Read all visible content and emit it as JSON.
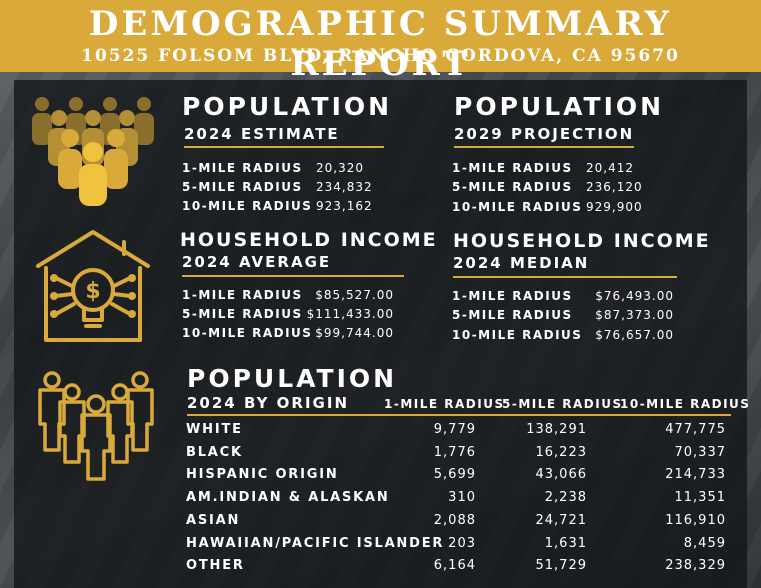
{
  "header": {
    "title": "DEMOGRAPHIC SUMMARY REPORT",
    "address": "10525 FOLSOM BLVD, RANCHO CORDOVA, CA 95670"
  },
  "accent_color": "#d9aa3a",
  "icons": [
    "people-group-icon",
    "house-lightbulb-icon",
    "people-outline-icon"
  ],
  "population_2024": {
    "title": "POPULATION",
    "subtitle": "2024 ESTIMATE",
    "rows": [
      {
        "label": "1-MILE RADIUS",
        "value": "20,320"
      },
      {
        "label": "5-MILE RADIUS",
        "value": "234,832"
      },
      {
        "label": "10-MILE RADIUS",
        "value": "923,162"
      }
    ]
  },
  "population_2029": {
    "title": "POPULATION",
    "subtitle": "2029 PROJECTION",
    "rows": [
      {
        "label": "1-MILE RADIUS",
        "value": "20,412"
      },
      {
        "label": "5-MILE RADIUS",
        "value": "236,120"
      },
      {
        "label": "10-MILE RADIUS",
        "value": "929,900"
      }
    ]
  },
  "income_average": {
    "title": "HOUSEHOLD INCOME",
    "subtitle": "2024 AVERAGE",
    "rows": [
      {
        "label": "1-MILE RADIUS",
        "value": "$85,527.00"
      },
      {
        "label": "5-MILE RADIUS",
        "value": "$111,433.00"
      },
      {
        "label": "10-MILE RADIUS",
        "value": "$99,744.00"
      }
    ]
  },
  "income_median": {
    "title": "HOUSEHOLD INCOME",
    "subtitle": "2024 MEDIAN",
    "rows": [
      {
        "label": "1-MILE RADIUS",
        "value": "$76,493.00"
      },
      {
        "label": "5-MILE RADIUS",
        "value": "$87,373.00"
      },
      {
        "label": "10-MILE RADIUS",
        "value": "$76,657.00"
      }
    ]
  },
  "origin": {
    "title": "POPULATION",
    "subtitle": "2024 BY ORIGIN",
    "columns": [
      "1-MILE RADIUS",
      "5-MILE RADIUS",
      "10-MILE RADIUS"
    ],
    "rows": [
      {
        "label": "WHITE",
        "values": [
          "9,779",
          "138,291",
          "477,775"
        ]
      },
      {
        "label": "BLACK",
        "values": [
          "1,776",
          "16,223",
          "70,337"
        ]
      },
      {
        "label": "HISPANIC ORIGIN",
        "values": [
          "5,699",
          "43,066",
          "214,733"
        ]
      },
      {
        "label": "AM.INDIAN & ALASKAN",
        "values": [
          "310",
          "2,238",
          "11,351"
        ]
      },
      {
        "label": "ASIAN",
        "values": [
          "2,088",
          "24,721",
          "116,910"
        ]
      },
      {
        "label": "HAWAIIAN/PACIFIC ISLANDER",
        "values": [
          "203",
          "1,631",
          "8,459"
        ]
      },
      {
        "label": "OTHER",
        "values": [
          "6,164",
          "51,729",
          "238,329"
        ]
      }
    ]
  }
}
